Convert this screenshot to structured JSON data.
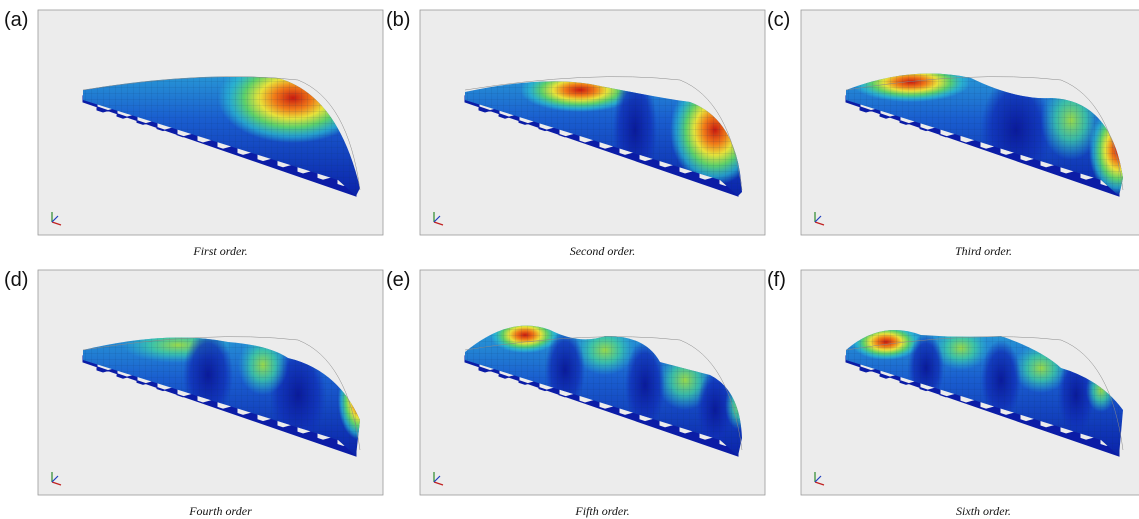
{
  "panels": [
    {
      "label": "(a)",
      "caption": "First order."
    },
    {
      "label": "(b)",
      "caption": "Second order."
    },
    {
      "label": "(c)",
      "caption": "Third order."
    },
    {
      "label": "(d)",
      "caption": "Fourth order"
    },
    {
      "label": "(e)",
      "caption": "Fifth order."
    },
    {
      "label": "(f)",
      "caption": "Sixth order."
    }
  ]
}
